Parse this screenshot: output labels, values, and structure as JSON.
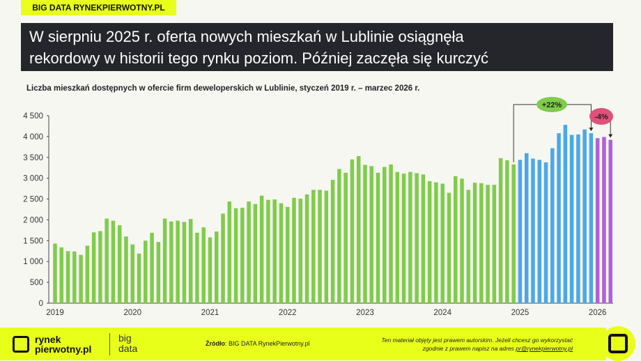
{
  "tag": "BIG DATA RYNEKPIERWOTNY.PL",
  "title_line1": "W sierpniu 2025 r. oferta nowych mieszkań w Lublinie osiągnęła",
  "title_line2": "rekordowy w historii tego rynku poziom. Później zaczęła się kurczyć",
  "chart_data": {
    "type": "bar",
    "title": "Liczba mieszkań dostępnych w ofercie firm deweloperskich w Lublinie, styczeń 2019 r. – marzec 2026 r.",
    "ylim": [
      0,
      4500
    ],
    "yticks": [
      "0",
      "500",
      "1 000",
      "1 500",
      "2 000",
      "2 500",
      "3 000",
      "3 500",
      "4 000",
      "4 500"
    ],
    "xticks": [
      "2019",
      "2020",
      "2021",
      "2022",
      "2023",
      "2024",
      "2025",
      "2026"
    ],
    "colors": {
      "2019-2024": "#7fcc4a",
      "2025": "#4aa8e8",
      "2026": "#b060d8"
    },
    "values": [
      1430,
      1340,
      1250,
      1240,
      1160,
      1380,
      1700,
      1730,
      2030,
      1980,
      1870,
      1600,
      1410,
      1190,
      1500,
      1690,
      1470,
      2030,
      1960,
      1980,
      1950,
      2020,
      1690,
      1820,
      1580,
      1720,
      2150,
      2440,
      2280,
      2290,
      2440,
      2380,
      2580,
      2480,
      2490,
      2400,
      2310,
      2530,
      2510,
      2610,
      2720,
      2720,
      2700,
      2960,
      3220,
      3130,
      3450,
      3530,
      3320,
      3290,
      3130,
      3270,
      3330,
      3150,
      3110,
      3150,
      3120,
      3090,
      2930,
      2900,
      2870,
      2650,
      3050,
      2990,
      2720,
      2890,
      2880,
      2840,
      2840,
      3480,
      3430,
      3330,
      3440,
      3600,
      3470,
      3440,
      3380,
      3720,
      4080,
      4280,
      4040,
      4050,
      4170,
      4080,
      3960,
      3990,
      3920
    ],
    "annotations": [
      {
        "label": "+22%",
        "from": "2024-12",
        "to": "2025-12",
        "color": "#7fcc4a"
      },
      {
        "label": "-4%",
        "from": "2025-12",
        "to": "2026-03",
        "color": "#e0507a"
      }
    ]
  },
  "footer": {
    "logo_text1": "rynek",
    "logo_text2": "pierwotny.pl",
    "big": "big",
    "data": "data",
    "source_label": "Źródło",
    "source": ": BIG DATA RynekPierwotny.pl",
    "copy1": "Ten materiał objęty jest prawem autorskim. Jeżeli chcesz go wykorzystać",
    "copy2": "zgodnie z prawem napisz na adres ",
    "email": "pr@rynekpierwotny.pl"
  }
}
